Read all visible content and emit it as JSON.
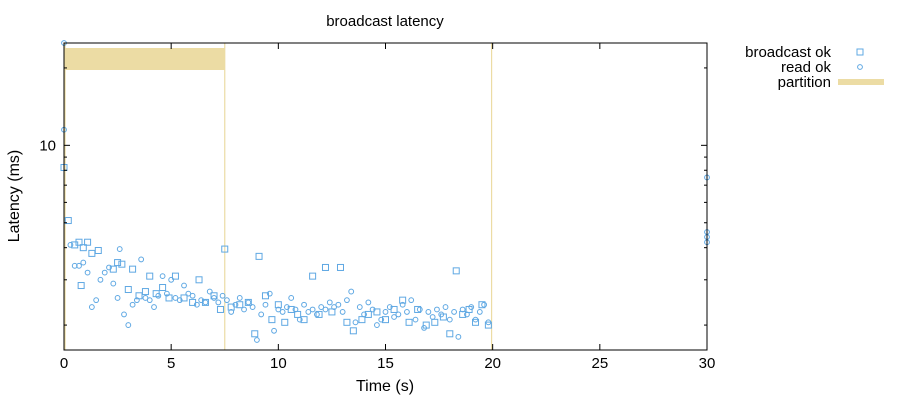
{
  "chart_data": {
    "type": "scatter",
    "title": "broadcast latency",
    "xlabel": "Time (s)",
    "ylabel": "Latency (ms)",
    "xlim": [
      0,
      30
    ],
    "ylim": [
      1.6,
      25
    ],
    "yscale": "log",
    "x_ticks": [
      0,
      5,
      10,
      15,
      20,
      25,
      30
    ],
    "x_tick_labels": [
      "0",
      "5",
      "10",
      "15",
      "20",
      "25",
      "30"
    ],
    "y_ticks": [
      10
    ],
    "y_tick_labels": [
      "10"
    ],
    "grid": false,
    "legend_position": "outside-top-right",
    "colors": {
      "points": "#5fa8e3",
      "partition": "#ecdca4"
    },
    "partition": {
      "name": "partition",
      "intervals": [
        [
          0.05,
          7.5
        ]
      ],
      "markers": [
        0.05,
        7.5,
        19.95
      ]
    },
    "series": [
      {
        "name": "broadcast ok",
        "marker": "square",
        "points": [
          [
            0.0,
            8.2
          ],
          [
            0.2,
            5.1
          ],
          [
            0.5,
            4.1
          ],
          [
            0.7,
            4.2
          ],
          [
            0.9,
            4.0
          ],
          [
            1.1,
            4.2
          ],
          [
            1.3,
            3.8
          ],
          [
            1.6,
            3.9
          ],
          [
            0.8,
            2.85
          ],
          [
            2.3,
            3.3
          ],
          [
            2.5,
            3.5
          ],
          [
            2.7,
            3.45
          ],
          [
            3.0,
            2.75
          ],
          [
            3.2,
            3.3
          ],
          [
            3.5,
            2.6
          ],
          [
            3.8,
            2.7
          ],
          [
            4.0,
            3.1
          ],
          [
            4.3,
            2.65
          ],
          [
            4.6,
            2.8
          ],
          [
            4.9,
            2.55
          ],
          [
            5.2,
            3.1
          ],
          [
            5.6,
            2.55
          ],
          [
            6.0,
            2.45
          ],
          [
            6.3,
            3.0
          ],
          [
            6.6,
            2.45
          ],
          [
            7.0,
            2.6
          ],
          [
            7.3,
            2.3
          ],
          [
            7.5,
            3.95
          ],
          [
            7.8,
            2.35
          ],
          [
            8.2,
            2.4
          ],
          [
            8.6,
            2.45
          ],
          [
            8.9,
            1.85
          ],
          [
            9.1,
            3.7
          ],
          [
            9.4,
            2.6
          ],
          [
            9.7,
            2.1
          ],
          [
            10.0,
            2.4
          ],
          [
            10.3,
            2.05
          ],
          [
            10.6,
            2.3
          ],
          [
            10.9,
            2.2
          ],
          [
            11.2,
            2.1
          ],
          [
            11.6,
            3.1
          ],
          [
            11.9,
            2.2
          ],
          [
            12.2,
            3.35
          ],
          [
            12.5,
            2.25
          ],
          [
            12.9,
            3.35
          ],
          [
            13.2,
            2.05
          ],
          [
            13.5,
            1.9
          ],
          [
            13.9,
            2.1
          ],
          [
            14.2,
            2.2
          ],
          [
            14.6,
            2.25
          ],
          [
            15.0,
            2.1
          ],
          [
            15.4,
            2.3
          ],
          [
            15.8,
            2.5
          ],
          [
            16.1,
            2.05
          ],
          [
            16.5,
            2.3
          ],
          [
            16.9,
            2.0
          ],
          [
            17.3,
            2.05
          ],
          [
            17.7,
            2.15
          ],
          [
            18.0,
            1.85
          ],
          [
            18.3,
            3.25
          ],
          [
            18.6,
            2.2
          ],
          [
            18.9,
            2.3
          ],
          [
            19.2,
            2.05
          ],
          [
            19.5,
            2.4
          ],
          [
            19.8,
            2.0
          ]
        ]
      },
      {
        "name": "read ok",
        "marker": "circle",
        "points": [
          [
            0.0,
            25.0
          ],
          [
            0.0,
            11.5
          ],
          [
            0.3,
            4.1
          ],
          [
            0.5,
            3.4
          ],
          [
            0.7,
            3.4
          ],
          [
            0.9,
            3.5
          ],
          [
            1.1,
            3.2
          ],
          [
            1.3,
            2.35
          ],
          [
            1.5,
            2.5
          ],
          [
            1.7,
            3.0
          ],
          [
            1.9,
            3.2
          ],
          [
            2.1,
            3.35
          ],
          [
            2.3,
            2.9
          ],
          [
            2.5,
            2.55
          ],
          [
            2.6,
            3.95
          ],
          [
            2.8,
            2.2
          ],
          [
            3.0,
            2.0
          ],
          [
            3.2,
            2.4
          ],
          [
            3.4,
            2.5
          ],
          [
            3.6,
            3.6
          ],
          [
            3.8,
            2.55
          ],
          [
            4.0,
            2.5
          ],
          [
            4.2,
            2.35
          ],
          [
            4.4,
            2.6
          ],
          [
            4.6,
            3.1
          ],
          [
            4.8,
            2.65
          ],
          [
            5.0,
            3.0
          ],
          [
            5.2,
            2.55
          ],
          [
            5.4,
            2.5
          ],
          [
            5.6,
            2.85
          ],
          [
            5.8,
            2.65
          ],
          [
            6.0,
            2.6
          ],
          [
            6.2,
            2.4
          ],
          [
            6.4,
            2.5
          ],
          [
            6.6,
            2.45
          ],
          [
            6.8,
            2.7
          ],
          [
            7.0,
            2.55
          ],
          [
            7.2,
            2.45
          ],
          [
            7.4,
            2.6
          ],
          [
            7.6,
            2.5
          ],
          [
            7.8,
            2.25
          ],
          [
            8.0,
            2.4
          ],
          [
            8.2,
            2.55
          ],
          [
            8.4,
            2.3
          ],
          [
            8.6,
            2.45
          ],
          [
            8.8,
            2.35
          ],
          [
            9.0,
            1.75
          ],
          [
            9.2,
            2.2
          ],
          [
            9.4,
            2.4
          ],
          [
            9.6,
            2.65
          ],
          [
            9.8,
            1.9
          ],
          [
            10.0,
            2.3
          ],
          [
            10.2,
            2.25
          ],
          [
            10.4,
            2.35
          ],
          [
            10.6,
            2.55
          ],
          [
            10.8,
            2.3
          ],
          [
            11.0,
            2.1
          ],
          [
            11.2,
            2.4
          ],
          [
            11.4,
            2.25
          ],
          [
            11.6,
            2.3
          ],
          [
            11.8,
            2.2
          ],
          [
            12.0,
            2.35
          ],
          [
            12.2,
            2.3
          ],
          [
            12.4,
            2.45
          ],
          [
            12.6,
            2.35
          ],
          [
            12.8,
            2.4
          ],
          [
            13.0,
            2.25
          ],
          [
            13.2,
            2.5
          ],
          [
            13.4,
            2.7
          ],
          [
            13.6,
            2.05
          ],
          [
            13.8,
            2.35
          ],
          [
            14.0,
            2.2
          ],
          [
            14.2,
            2.45
          ],
          [
            14.4,
            2.3
          ],
          [
            14.6,
            2.0
          ],
          [
            14.8,
            2.1
          ],
          [
            15.0,
            2.25
          ],
          [
            15.2,
            2.35
          ],
          [
            15.4,
            2.15
          ],
          [
            15.6,
            2.2
          ],
          [
            15.8,
            2.4
          ],
          [
            16.0,
            2.25
          ],
          [
            16.2,
            2.5
          ],
          [
            16.4,
            2.1
          ],
          [
            16.6,
            2.3
          ],
          [
            16.8,
            1.95
          ],
          [
            17.0,
            2.25
          ],
          [
            17.2,
            2.15
          ],
          [
            17.4,
            2.3
          ],
          [
            17.6,
            2.2
          ],
          [
            17.8,
            2.35
          ],
          [
            18.0,
            2.1
          ],
          [
            18.2,
            2.25
          ],
          [
            18.4,
            1.8
          ],
          [
            18.6,
            2.3
          ],
          [
            18.8,
            2.2
          ],
          [
            19.0,
            2.35
          ],
          [
            19.2,
            2.1
          ],
          [
            19.4,
            2.25
          ],
          [
            19.6,
            2.4
          ],
          [
            19.8,
            2.05
          ],
          [
            30.0,
            7.5
          ],
          [
            30.0,
            4.6
          ],
          [
            30.0,
            4.4
          ],
          [
            30.0,
            4.2
          ]
        ]
      }
    ]
  }
}
